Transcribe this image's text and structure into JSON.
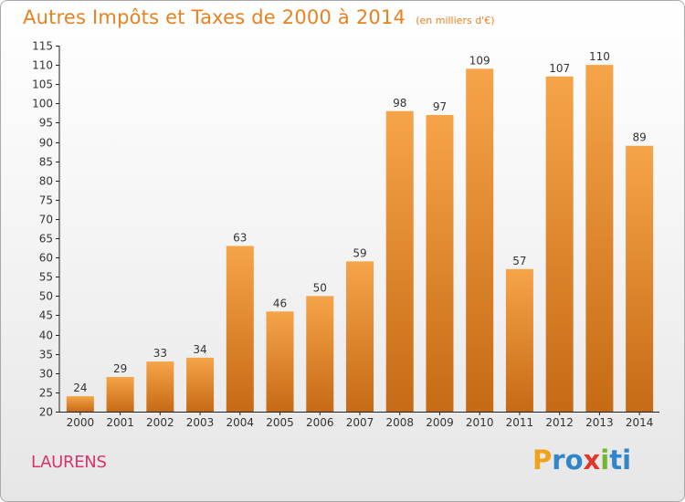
{
  "chart_data": {
    "type": "bar",
    "title": "Autres Impôts et Taxes de 2000 à 2014",
    "subtitle": "(en milliers d'€)",
    "xlabel": "",
    "ylabel": "",
    "categories": [
      "2000",
      "2001",
      "2002",
      "2003",
      "2004",
      "2005",
      "2006",
      "2007",
      "2008",
      "2009",
      "2010",
      "2011",
      "2012",
      "2013",
      "2014"
    ],
    "values": [
      24,
      29,
      33,
      34,
      63,
      46,
      50,
      59,
      98,
      97,
      109,
      57,
      107,
      110,
      89
    ],
    "data_labels": [
      "24",
      "29",
      "33",
      "34",
      "63",
      "46",
      "50",
      "59",
      "98",
      "97",
      "109",
      "57",
      "107",
      "110",
      "89"
    ],
    "ylim": [
      20,
      115
    ],
    "yticks": [
      20,
      25,
      30,
      35,
      40,
      45,
      50,
      55,
      60,
      65,
      70,
      75,
      80,
      85,
      90,
      95,
      100,
      105,
      110,
      115
    ],
    "grid": false,
    "legend": "none",
    "colors": {
      "bar_light": "#f6a449",
      "bar_dark": "#c66a15",
      "title": "#e8811f",
      "commune": "#d9346a",
      "axis": "#222222"
    }
  },
  "commune": "LAURENS",
  "logo": {
    "letters": [
      "P",
      "r",
      "o",
      "x",
      "i",
      "t",
      "i"
    ],
    "colors": [
      "#f2a11a",
      "#2f86c9",
      "#2f86c9",
      "#e2372c",
      "#71b62e",
      "#2f86c9",
      "#2f86c9"
    ]
  }
}
